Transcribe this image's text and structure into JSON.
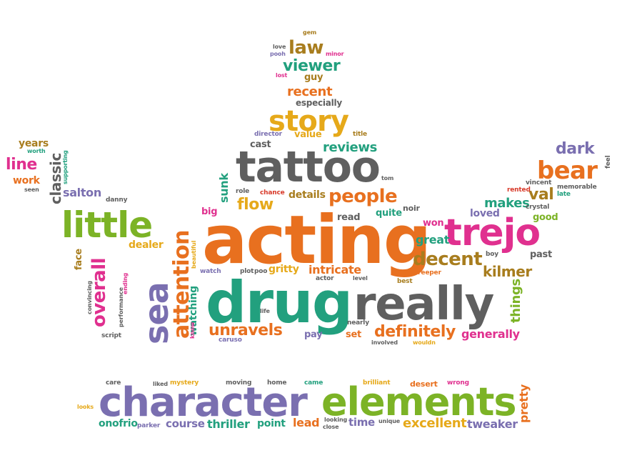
{
  "words": [
    {
      "id": "acting",
      "text": "acting",
      "color": "orange"
    },
    {
      "id": "drug",
      "text": "drug",
      "color": "teal"
    },
    {
      "id": "really",
      "text": "really",
      "color": "gray"
    },
    {
      "id": "tattoo",
      "text": "tattoo",
      "color": "gray"
    },
    {
      "id": "character",
      "text": "character",
      "color": "purple"
    },
    {
      "id": "elements",
      "text": "elements",
      "color": "green"
    },
    {
      "id": "trejo",
      "text": "trejo",
      "color": "pink"
    },
    {
      "id": "little",
      "text": "little",
      "color": "green"
    },
    {
      "id": "story",
      "text": "story",
      "color": "gold"
    },
    {
      "id": "bear",
      "text": "bear",
      "color": "orange"
    },
    {
      "id": "sea",
      "text": "sea",
      "color": "purple"
    },
    {
      "id": "attention",
      "text": "attention",
      "color": "orange"
    },
    {
      "id": "overall",
      "text": "overall",
      "color": "pink"
    },
    {
      "id": "people",
      "text": "people",
      "color": "orange"
    },
    {
      "id": "decent",
      "text": "decent",
      "color": "brown"
    },
    {
      "id": "definitely",
      "text": "definitely",
      "color": "orange"
    },
    {
      "id": "unravels",
      "text": "unravels",
      "color": "orange"
    },
    {
      "id": "law",
      "text": "law",
      "color": "brown"
    },
    {
      "id": "viewer",
      "text": "viewer",
      "color": "teal"
    },
    {
      "id": "dark",
      "text": "dark",
      "color": "purple"
    },
    {
      "id": "line",
      "text": "line",
      "color": "pink"
    },
    {
      "id": "classic",
      "text": "classic",
      "color": "gray"
    },
    {
      "id": "flow",
      "text": "flow",
      "color": "gold"
    },
    {
      "id": "kilmer",
      "text": "kilmer",
      "color": "brown"
    },
    {
      "id": "val",
      "text": "val",
      "color": "brown"
    },
    {
      "id": "reviews",
      "text": "reviews",
      "color": "teal"
    },
    {
      "id": "recent",
      "text": "recent",
      "color": "orange"
    },
    {
      "id": "makes",
      "text": "makes",
      "color": "teal"
    },
    {
      "id": "salton",
      "text": "salton",
      "color": "purple"
    },
    {
      "id": "intricate",
      "text": "intricate",
      "color": "orange"
    },
    {
      "id": "things",
      "text": "things",
      "color": "green"
    },
    {
      "id": "generally",
      "text": "generally",
      "color": "pink"
    },
    {
      "id": "excellent",
      "text": "excellent",
      "color": "gold"
    },
    {
      "id": "thriller",
      "text": "thriller",
      "color": "teal"
    },
    {
      "id": "course",
      "text": "course",
      "color": "purple"
    },
    {
      "id": "tweaker",
      "text": "tweaker",
      "color": "purple"
    },
    {
      "id": "lead",
      "text": "lead",
      "color": "orange"
    },
    {
      "id": "time",
      "text": "time",
      "color": "purple"
    },
    {
      "id": "point",
      "text": "point",
      "color": "teal"
    },
    {
      "id": "pretty",
      "text": "pretty",
      "color": "orange"
    },
    {
      "id": "onofrio",
      "text": "onofrio",
      "color": "teal"
    },
    {
      "id": "great",
      "text": "great",
      "color": "teal"
    },
    {
      "id": "loved",
      "text": "loved",
      "color": "purple"
    },
    {
      "id": "gritty",
      "text": "gritty",
      "color": "gold"
    },
    {
      "id": "dealer",
      "text": "dealer",
      "color": "gold"
    },
    {
      "id": "years",
      "text": "years",
      "color": "brown"
    },
    {
      "id": "work",
      "text": "work",
      "color": "orange"
    },
    {
      "id": "cast",
      "text": "cast",
      "color": "gray"
    },
    {
      "id": "value",
      "text": "value",
      "color": "gold"
    },
    {
      "id": "guy",
      "text": "guy",
      "color": "brown"
    },
    {
      "id": "especially",
      "text": "especially",
      "color": "gray"
    },
    {
      "id": "sunk",
      "text": "sunk",
      "color": "teal"
    },
    {
      "id": "watching",
      "text": "watching",
      "color": "teal"
    },
    {
      "id": "details",
      "text": "details",
      "color": "brown"
    },
    {
      "id": "big",
      "text": "big",
      "color": "pink"
    },
    {
      "id": "quite",
      "text": "quite",
      "color": "teal"
    },
    {
      "id": "read",
      "text": "read",
      "color": "gray"
    },
    {
      "id": "won",
      "text": "won",
      "color": "pink"
    },
    {
      "id": "good",
      "text": "good",
      "color": "green"
    },
    {
      "id": "past",
      "text": "past",
      "color": "gray"
    },
    {
      "id": "face",
      "text": "face",
      "color": "brown"
    },
    {
      "id": "pay",
      "text": "pay",
      "color": "purple"
    },
    {
      "id": "set",
      "text": "set",
      "color": "orange"
    },
    {
      "id": "noir",
      "text": "noir",
      "color": "gray"
    },
    {
      "id": "role",
      "text": "role",
      "color": "gray"
    },
    {
      "id": "chance",
      "text": "chance",
      "color": "red"
    },
    {
      "id": "director",
      "text": "director",
      "color": "purple"
    },
    {
      "id": "title",
      "text": "title",
      "color": "brown"
    },
    {
      "id": "danny",
      "text": "danny",
      "color": "gray"
    },
    {
      "id": "rented",
      "text": "rented",
      "color": "red"
    },
    {
      "id": "vincent",
      "text": "vincent",
      "color": "gray"
    },
    {
      "id": "memorable",
      "text": "memorable",
      "color": "gray"
    },
    {
      "id": "crystal",
      "text": "crystal",
      "color": "gray"
    },
    {
      "id": "late",
      "text": "late",
      "color": "teal"
    },
    {
      "id": "feel",
      "text": "feel",
      "color": "gray"
    },
    {
      "id": "gem",
      "text": "gem",
      "color": "brown"
    },
    {
      "id": "love",
      "text": "love",
      "color": "gray"
    },
    {
      "id": "pooh",
      "text": "pooh",
      "color": "purple"
    },
    {
      "id": "minor",
      "text": "minor",
      "color": "pink"
    },
    {
      "id": "lost",
      "text": "lost",
      "color": "pink"
    },
    {
      "id": "tom",
      "text": "tom",
      "color": "gray"
    },
    {
      "id": "worth",
      "text": "worth",
      "color": "teal"
    },
    {
      "id": "seen",
      "text": "seen",
      "color": "gray"
    },
    {
      "id": "supporting",
      "text": "supporting",
      "color": "teal"
    },
    {
      "id": "beautiful",
      "text": "beautiful",
      "color": "gold"
    },
    {
      "id": "watch",
      "text": "watch",
      "color": "purple"
    },
    {
      "id": "plot",
      "text": "plot",
      "color": "gray"
    },
    {
      "id": "poo",
      "text": "poo",
      "color": "gray"
    },
    {
      "id": "actor",
      "text": "actor",
      "color": "gray"
    },
    {
      "id": "level",
      "text": "level",
      "color": "gray"
    },
    {
      "id": "best",
      "text": "best",
      "color": "brown"
    },
    {
      "id": "creeper",
      "text": "creeper",
      "color": "orange"
    },
    {
      "id": "boy",
      "text": "boy",
      "color": "gray"
    },
    {
      "id": "life",
      "text": "life",
      "color": "gray"
    },
    {
      "id": "nearly",
      "text": "nearly",
      "color": "gray"
    },
    {
      "id": "involved",
      "text": "involved",
      "color": "gray"
    },
    {
      "id": "wouldn",
      "text": "wouldn",
      "color": "gold"
    },
    {
      "id": "caruso",
      "text": "caruso",
      "color": "purple"
    },
    {
      "id": "know",
      "text": "know",
      "color": "pink"
    },
    {
      "id": "ending",
      "text": "ending",
      "color": "pink"
    },
    {
      "id": "performance",
      "text": "performance",
      "color": "gray"
    },
    {
      "id": "convincing",
      "text": "convincing",
      "color": "gray"
    },
    {
      "id": "script",
      "text": "script",
      "color": "gray"
    },
    {
      "id": "care",
      "text": "care",
      "color": "gray"
    },
    {
      "id": "liked",
      "text": "liked",
      "color": "gray"
    },
    {
      "id": "mystery",
      "text": "mystery",
      "color": "gold"
    },
    {
      "id": "moving",
      "text": "moving",
      "color": "gray"
    },
    {
      "id": "home",
      "text": "home",
      "color": "gray"
    },
    {
      "id": "came",
      "text": "came",
      "color": "teal"
    },
    {
      "id": "brilliant",
      "text": "brilliant",
      "color": "gold"
    },
    {
      "id": "desert",
      "text": "desert",
      "color": "orange"
    },
    {
      "id": "wrong",
      "text": "wrong",
      "color": "pink"
    },
    {
      "id": "looks",
      "text": "looks",
      "color": "gold"
    },
    {
      "id": "parker",
      "text": "parker",
      "color": "purple"
    },
    {
      "id": "looking",
      "text": "looking",
      "color": "gray"
    },
    {
      "id": "close",
      "text": "close",
      "color": "gray"
    },
    {
      "id": "unique",
      "text": "unique",
      "color": "gray"
    }
  ],
  "palette": {
    "orange": "#e8701f",
    "gray": "#5f5f5f",
    "green": "#7cb326",
    "pink": "#e0308f",
    "purple": "#7a6fb0",
    "teal": "#22a07e",
    "gold": "#e6a91a",
    "brown": "#a87d1e",
    "red": "#d83a2a"
  }
}
